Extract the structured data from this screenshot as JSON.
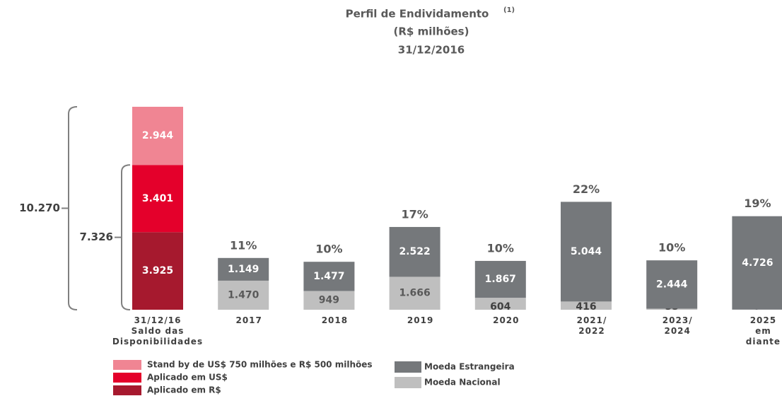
{
  "chart_data": {
    "type": "bar",
    "stacked": true,
    "title": "Perfil de Endividamento",
    "title_note": "(1)",
    "subtitle": "(R$ milhões)",
    "date": "31/12/2016",
    "categories": [
      [
        "31/12/16",
        "Saldo das",
        "Disponibilidades"
      ],
      [
        "2017"
      ],
      [
        "2018"
      ],
      [
        "2019"
      ],
      [
        "2020"
      ],
      [
        "2021/",
        "2022"
      ],
      [
        "2023/",
        "2024"
      ],
      [
        "2025",
        "em",
        "diante"
      ]
    ],
    "series": [
      {
        "name": "Stand by de US$ 750 milhões e R$ 500 milhões",
        "color": "#f08593",
        "label_color": "#ffffff",
        "values": [
          2944,
          null,
          null,
          null,
          null,
          null,
          null,
          null
        ],
        "value_labels": [
          "2.944",
          null,
          null,
          null,
          null,
          null,
          null,
          null
        ]
      },
      {
        "name": "Aplicado em US$",
        "color": "#e4002b",
        "label_color": "#ffffff",
        "values": [
          3401,
          null,
          null,
          null,
          null,
          null,
          null,
          null
        ],
        "value_labels": [
          "3.401",
          null,
          null,
          null,
          null,
          null,
          null,
          null
        ]
      },
      {
        "name": "Aplicado em R$",
        "color": "#a6192e",
        "label_color": "#ffffff",
        "values": [
          3925,
          null,
          null,
          null,
          null,
          null,
          null,
          null
        ],
        "value_labels": [
          "3.925",
          null,
          null,
          null,
          null,
          null,
          null,
          null
        ]
      },
      {
        "name": "Moeda Estrangeira",
        "color": "#75787b",
        "label_color": "#ffffff",
        "values": [
          null,
          1149,
          1477,
          2522,
          1867,
          5044,
          2444,
          4726
        ],
        "value_labels": [
          null,
          "1.149",
          "1.477",
          "2.522",
          "1.867",
          "5.044",
          "2.444",
          "4.726"
        ]
      },
      {
        "name": "Moeda Nacional",
        "color": "#bfbfbf",
        "label_color": "#595959",
        "values": [
          null,
          1470,
          949,
          1666,
          604,
          416,
          55,
          7
        ],
        "value_labels": [
          null,
          "1.470",
          null,
          "1.666",
          null,
          null,
          null,
          null
        ]
      }
    ],
    "shares": {
      "values": [
        null,
        11,
        10,
        17,
        10,
        22,
        10,
        19
      ],
      "value_labels": [
        null,
        "11%",
        "10%",
        "17%",
        "10%",
        "22%",
        "10%",
        "19%"
      ]
    },
    "brackets": [
      {
        "value": 10270,
        "label": "10.270"
      },
      {
        "value": 7326,
        "label": "7.326"
      }
    ]
  }
}
